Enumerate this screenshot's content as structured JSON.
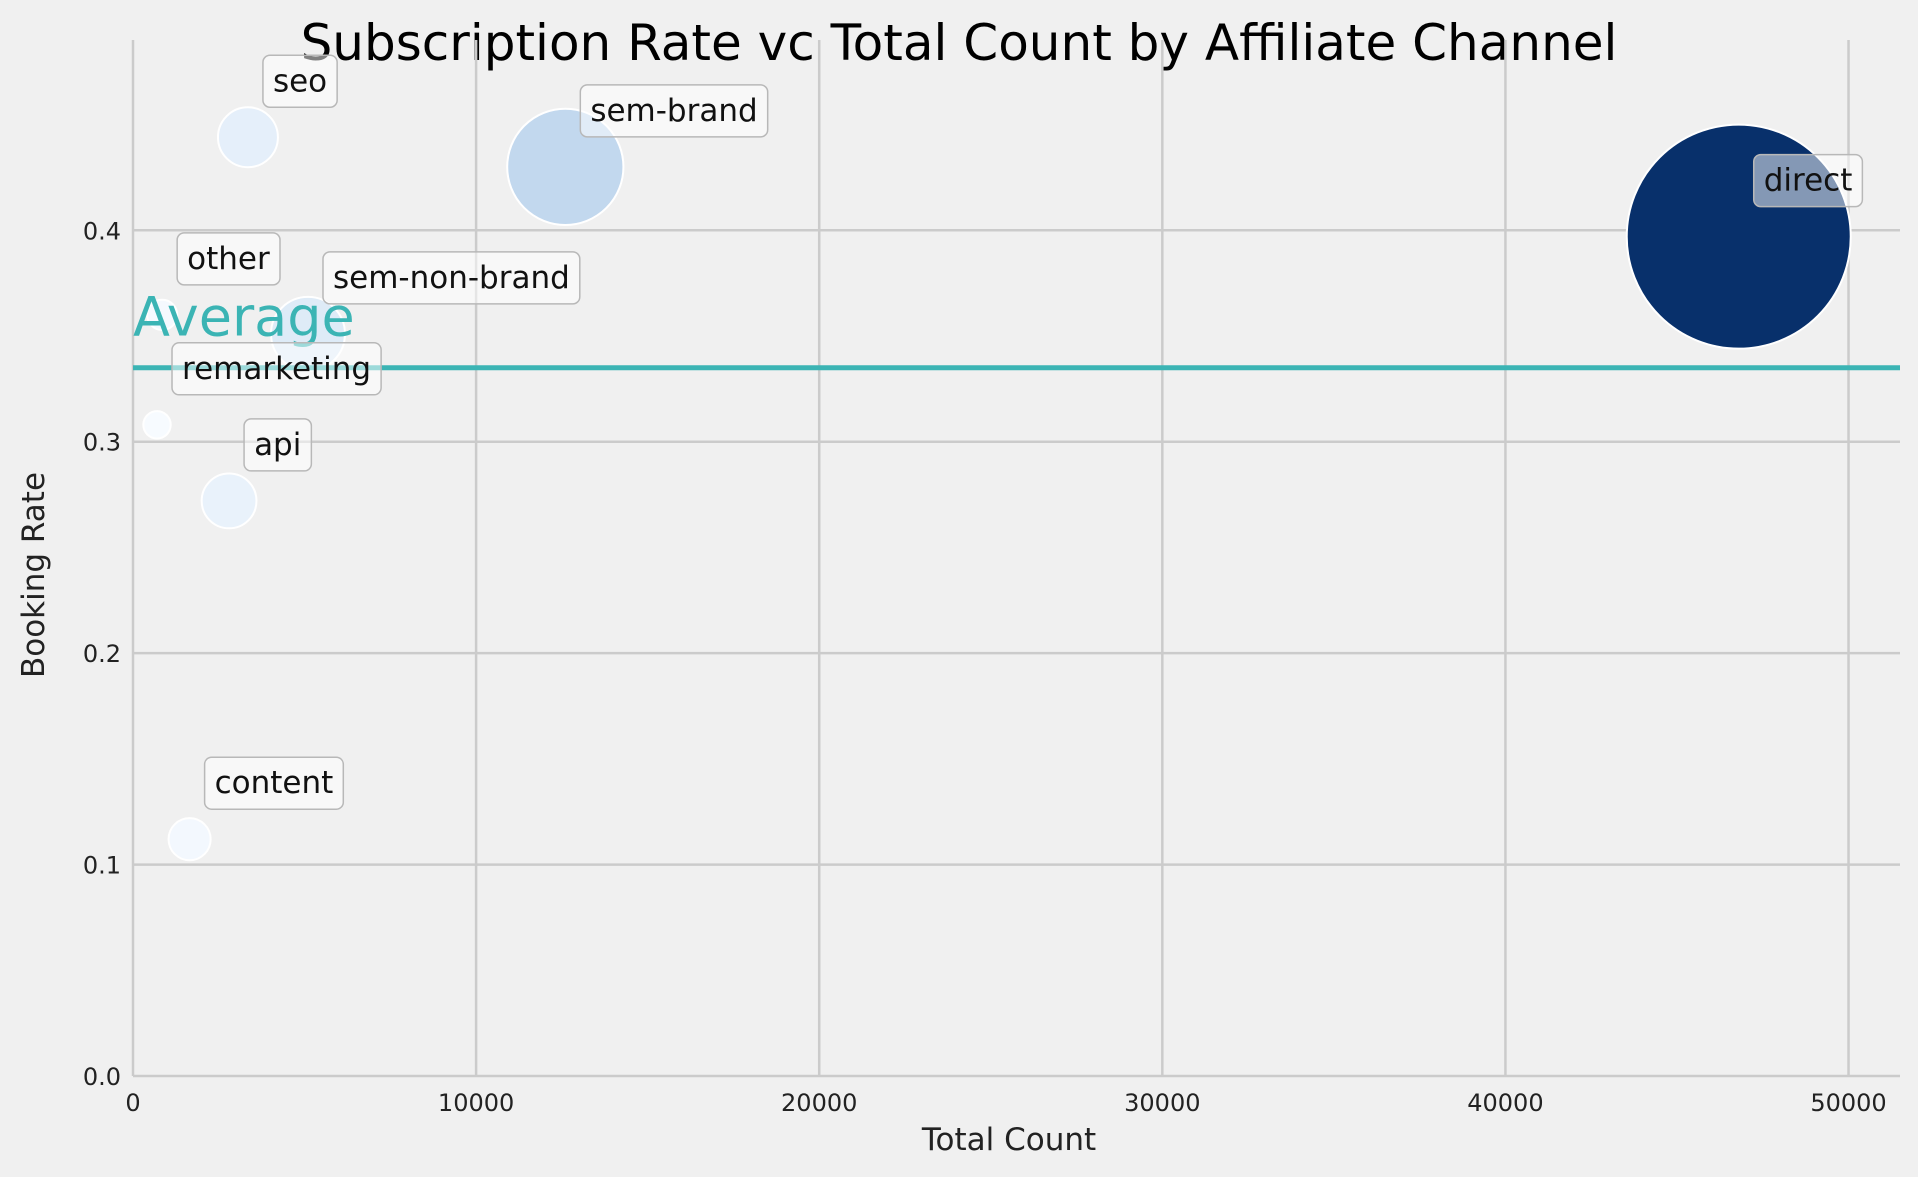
{
  "chart_data": {
    "type": "scatter",
    "title": "Subscription Rate vc Total Count by Affiliate Channel",
    "xlabel": "Total Count",
    "ylabel": "Booking Rate",
    "xlim": [
      0,
      51500
    ],
    "ylim": [
      0,
      0.49
    ],
    "xticks": [
      0,
      10000,
      20000,
      30000,
      40000,
      50000
    ],
    "yticks": [
      0.0,
      0.1,
      0.2,
      0.3,
      0.4
    ],
    "grid": true,
    "average": {
      "label": "Average",
      "value": 0.335,
      "color": "#3bb4b4"
    },
    "points": [
      {
        "label": "direct",
        "x": 46800,
        "y": 0.397,
        "color": "#08306b"
      },
      {
        "label": "sem-brand",
        "x": 12600,
        "y": 0.43,
        "color": "#c2d8ee"
      },
      {
        "label": "sem-non-brand",
        "x": 5100,
        "y": 0.351,
        "color": "#deebf7"
      },
      {
        "label": "seo",
        "x": 3350,
        "y": 0.444,
        "color": "#e5effa"
      },
      {
        "label": "api",
        "x": 2800,
        "y": 0.272,
        "color": "#e9f2fb"
      },
      {
        "label": "content",
        "x": 1650,
        "y": 0.112,
        "color": "#f3f8fe"
      },
      {
        "label": "other",
        "x": 850,
        "y": 0.36,
        "color": "#f5f9fe"
      },
      {
        "label": "remarketing",
        "x": 700,
        "y": 0.308,
        "color": "#f7fbff"
      }
    ]
  }
}
